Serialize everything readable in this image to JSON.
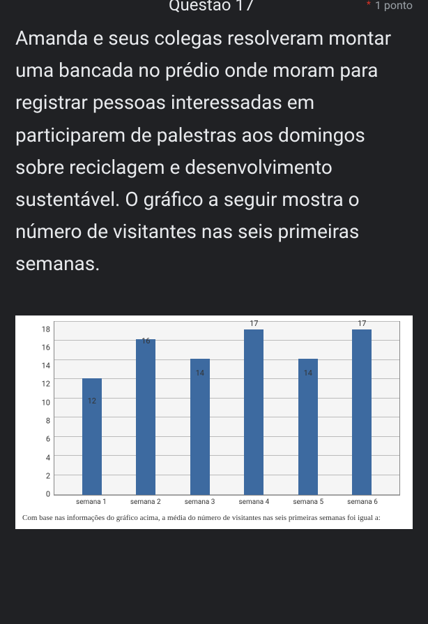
{
  "header": {
    "question_number": "Questão 17",
    "asterisk": "*",
    "points": "1 ponto"
  },
  "question_text": " Amanda e seus colegas resolveram montar uma bancada no prédio onde moram para registrar pessoas interessadas em participarem de palestras aos domingos sobre reciclagem e desenvolvimento sustentável. O gráfico a seguir mostra o número de visitantes nas seis primeiras semanas.",
  "chart": {
    "type": "bar",
    "ylim": [
      0,
      18
    ],
    "ytick_step": 2,
    "y_ticks": [
      "18",
      "16",
      "14",
      "12",
      "10",
      "8",
      "6",
      "4",
      "2",
      "0"
    ],
    "categories": [
      "semana 1",
      "semana 2",
      "semana 3",
      "semana 4",
      "semana 5",
      "semana 6"
    ],
    "values": [
      12,
      16,
      14,
      17,
      14,
      17
    ],
    "value_labels": [
      "12",
      "16",
      "14",
      "17",
      "14",
      "17"
    ],
    "bar_color": "#3d6aa0",
    "background_color": "#f5f5f5",
    "grid_color": "#bbbbbb",
    "caption": "Com base nas informações do gráfico acima, a média do número de visitantes nas seis primeiras semanas foi igual a:"
  }
}
